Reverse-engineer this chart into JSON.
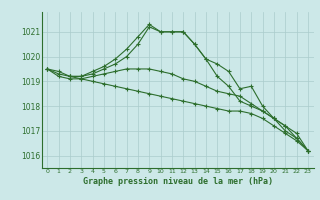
{
  "title": "Graphe pression niveau de la mer (hPa)",
  "bg_color": "#cce8e8",
  "grid_color": "#aacccc",
  "line_color": "#2d6e2d",
  "marker": "+",
  "xlim": [
    -0.5,
    23.5
  ],
  "ylim": [
    1015.5,
    1021.8
  ],
  "yticks": [
    1016,
    1017,
    1018,
    1019,
    1020,
    1021
  ],
  "xticks": [
    0,
    1,
    2,
    3,
    4,
    5,
    6,
    7,
    8,
    9,
    10,
    11,
    12,
    13,
    14,
    15,
    16,
    17,
    18,
    19,
    20,
    21,
    22,
    23
  ],
  "series": [
    {
      "x": [
        0,
        1,
        2,
        3,
        4,
        5,
        6,
        7,
        8,
        9,
        10,
        11,
        12,
        13,
        14,
        15,
        16,
        17,
        18,
        19,
        20,
        21,
        22,
        23
      ],
      "y": [
        1019.5,
        1019.4,
        1019.2,
        1019.2,
        1019.4,
        1019.6,
        1019.9,
        1020.3,
        1020.8,
        1021.3,
        1021.0,
        1021.0,
        1021.0,
        1020.5,
        1019.9,
        1019.7,
        1019.4,
        1018.7,
        1018.8,
        1018.0,
        1017.5,
        1017.2,
        1016.7,
        1016.2
      ]
    },
    {
      "x": [
        0,
        1,
        2,
        3,
        4,
        5,
        6,
        7,
        8,
        9,
        10,
        11,
        12,
        13,
        14,
        15,
        16,
        17,
        18,
        19,
        20,
        21,
        22,
        23
      ],
      "y": [
        1019.5,
        1019.2,
        1019.1,
        1019.1,
        1019.2,
        1019.3,
        1019.4,
        1019.5,
        1019.5,
        1019.5,
        1019.4,
        1019.3,
        1019.1,
        1019.0,
        1018.8,
        1018.6,
        1018.5,
        1018.4,
        1018.1,
        1017.8,
        1017.5,
        1017.2,
        1016.9,
        1016.2
      ]
    },
    {
      "x": [
        0,
        1,
        2,
        3,
        4,
        5,
        6,
        7,
        8,
        9,
        10,
        11,
        12,
        13,
        14,
        15,
        16,
        17,
        18,
        19,
        20,
        21,
        22,
        23
      ],
      "y": [
        1019.5,
        1019.3,
        1019.2,
        1019.1,
        1019.0,
        1018.9,
        1018.8,
        1018.7,
        1018.6,
        1018.5,
        1018.4,
        1018.3,
        1018.2,
        1018.1,
        1018.0,
        1017.9,
        1017.8,
        1017.8,
        1017.7,
        1017.5,
        1017.2,
        1016.9,
        1016.6,
        1016.2
      ]
    },
    {
      "x": [
        2,
        3,
        4,
        5,
        6,
        7,
        8,
        9,
        10,
        11,
        12,
        13,
        14,
        15,
        16,
        17,
        18,
        19,
        20,
        21,
        22,
        23
      ],
      "y": [
        1019.2,
        1019.2,
        1019.3,
        1019.5,
        1019.7,
        1020.0,
        1020.5,
        1021.2,
        1021.0,
        1021.0,
        1021.0,
        1020.5,
        1019.9,
        1019.2,
        1018.8,
        1018.2,
        1018.0,
        1017.8,
        1017.5,
        1017.0,
        1016.7,
        1016.2
      ]
    }
  ]
}
